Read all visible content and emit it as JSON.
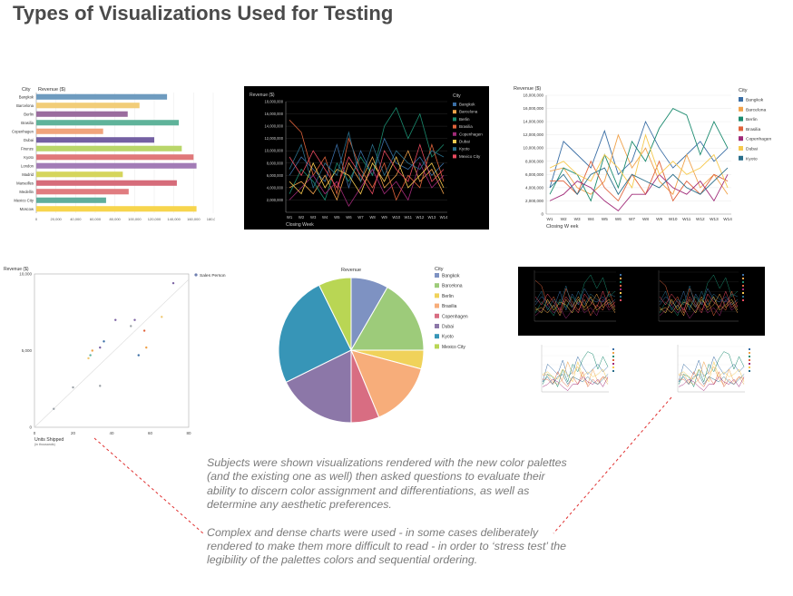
{
  "page": {
    "title": "Types of Visualizations Used for Testing"
  },
  "caption": {
    "p1": "Subjects were shown visualizations rendered with the new color palettes (and the existing one as well) then asked questions to evaluate their ability to discern color assignment and differentiations, as well as determine any aesthetic preferences.",
    "p2": "Complex and dense charts were used - in some cases deliberately rendered to make them more difficult to read - in order to ‘stress test’ the legibility of the palettes colors and sequential ordering."
  },
  "palette": [
    "#6f93c0",
    "#f0c873",
    "#9a6a9e",
    "#5db69c",
    "#f2a27a",
    "#7b62a3",
    "#b7d35b",
    "#e07a7a",
    "#a079b5",
    "#e05a72",
    "#d25c6c",
    "#f5d44e"
  ],
  "line_palette": [
    "#3a6ea5",
    "#f0a24a",
    "#1a8a6e",
    "#e0633b",
    "#a02a78",
    "#f6c94e",
    "#2a6e8a",
    "#e84a5f"
  ],
  "chart_data": [
    {
      "type": "bar",
      "id": "bar-chart",
      "xlabel": "Revenue ($)",
      "ylabel": "City",
      "categories": [
        "Bangkok",
        "Barcelona",
        "Berlin",
        "Brasilia",
        "Copenhagen",
        "Dubai",
        "Firenze",
        "Kyoto",
        "London",
        "Madrid",
        "Marseilles",
        "Medellin",
        "Mexico City",
        "Moscow"
      ],
      "values": [
        133000,
        105000,
        93000,
        145000,
        68000,
        120000,
        148000,
        160000,
        163000,
        88000,
        143000,
        94000,
        71000,
        163000
      ],
      "colors": [
        "#6e9bbf",
        "#f2cd78",
        "#9a6c9e",
        "#5fb39a",
        "#f0a47c",
        "#7460a3",
        "#b9d66a",
        "#e0787a",
        "#a27bb6",
        "#d5d55c",
        "#d66c7a",
        "#e07c80",
        "#5fae9c",
        "#f7d54d"
      ],
      "xticks": [
        "0",
        "20,000",
        "40,000",
        "60,000",
        "80,000",
        "100,000",
        "120,000",
        "140,000",
        "160,000",
        "180,000"
      ],
      "xlim": [
        0,
        180000
      ]
    },
    {
      "type": "line",
      "id": "line-dark",
      "ylabel": "Revenue ($)",
      "xlabel": "Closing Week",
      "legend_title": "City",
      "categories": [
        "W1",
        "W2",
        "W3",
        "W4",
        "W5",
        "W6",
        "W7",
        "W8",
        "W9",
        "W10",
        "W11",
        "W12",
        "W13",
        "W14"
      ],
      "yticks": [
        "2,000,000",
        "4,000,000",
        "6,000,000",
        "8,000,000",
        "10,000,000",
        "12,000,000",
        "14,000,000",
        "16,000,000",
        "18,000,000"
      ],
      "ylim": [
        0,
        18000000
      ],
      "series": [
        {
          "name": "Bangkok",
          "values": [
            6,
            9,
            7,
            5,
            11,
            4,
            10,
            6,
            12,
            8,
            7,
            9,
            6,
            8
          ]
        },
        {
          "name": "Barcelona",
          "values": [
            4,
            5,
            3,
            6,
            2,
            8,
            5,
            9,
            4,
            6,
            10,
            5,
            7,
            3
          ]
        },
        {
          "name": "Berlin",
          "values": [
            3,
            7,
            5,
            2,
            8,
            5,
            9,
            6,
            14,
            17,
            12,
            16,
            9,
            11
          ]
        },
        {
          "name": "Brasilia",
          "values": [
            15,
            13,
            6,
            9,
            3,
            12,
            7,
            4,
            8,
            2,
            6,
            4,
            11,
            5
          ]
        },
        {
          "name": "Copenhagen",
          "values": [
            2,
            4,
            6,
            3,
            5,
            1,
            4,
            7,
            3,
            5,
            2,
            8,
            4,
            6
          ]
        },
        {
          "name": "Dubai",
          "values": [
            5,
            3,
            8,
            4,
            7,
            6,
            3,
            8,
            5,
            9,
            4,
            6,
            8,
            4
          ]
        },
        {
          "name": "Kyoto",
          "values": [
            7,
            11,
            4,
            8,
            6,
            13,
            5,
            11,
            6,
            10,
            8,
            7,
            10,
            9
          ]
        },
        {
          "name": "Mexico City",
          "values": [
            9,
            6,
            10,
            7,
            4,
            9,
            6,
            3,
            10,
            7,
            5,
            11,
            5,
            7
          ]
        }
      ]
    },
    {
      "type": "line",
      "id": "line-light",
      "ylabel": "Revenue ($)",
      "xlabel": "Closing W  eek",
      "legend_title": "City",
      "categories": [
        "W1",
        "W2",
        "W3",
        "W4",
        "W5",
        "W6",
        "W7",
        "W8",
        "W9",
        "W10",
        "W11",
        "W12",
        "W13",
        "W14"
      ],
      "yticks": [
        "0",
        "2,000,000",
        "4,000,000",
        "6,000,000",
        "8,000,000",
        "10,000,000",
        "12,000,000",
        "14,000,000",
        "16,000,000",
        "18,000,000"
      ],
      "ylim": [
        0,
        18000000
      ],
      "series": [
        {
          "name": "Bangkok",
          "values": [
            4,
            11,
            9,
            7,
            12.6,
            6,
            8,
            14,
            10,
            7,
            9,
            11,
            8,
            10
          ]
        },
        {
          "name": "Barcelona",
          "values": [
            6.5,
            7,
            4,
            3,
            5,
            12,
            7,
            10,
            5,
            3,
            9,
            4,
            6,
            3
          ]
        },
        {
          "name": "Berlin",
          "values": [
            3,
            7,
            6,
            2,
            9,
            4,
            11,
            8,
            13,
            16,
            15,
            9,
            14,
            10
          ]
        },
        {
          "name": "Brasilia",
          "values": [
            5,
            5,
            3,
            8,
            4,
            2,
            6,
            3,
            8,
            2,
            5,
            3,
            6,
            5
          ]
        },
        {
          "name": "Copenhagen",
          "values": [
            2,
            3,
            5,
            4,
            2,
            0.5,
            3,
            3,
            6,
            4,
            3,
            5,
            2,
            6
          ]
        },
        {
          "name": "Dubai",
          "values": [
            7,
            8,
            6,
            5,
            9,
            7,
            4,
            12,
            6,
            8,
            6,
            7,
            9,
            4
          ]
        },
        {
          "name": "Kyoto",
          "values": [
            4,
            6,
            3,
            6,
            7,
            3,
            6,
            5,
            4,
            6,
            4,
            3,
            5,
            7
          ]
        }
      ]
    },
    {
      "type": "scatter",
      "id": "scatter-chart",
      "ylabel": "Revenue ($)",
      "xlabel": "Units Shipped",
      "xlabel_sub": "(in thousands)",
      "legend": "Sales Person",
      "xticks": [
        "0",
        "20",
        "40",
        "60",
        "80"
      ],
      "yticks": [
        "0",
        "5,000",
        "10,000"
      ],
      "xlim": [
        0,
        80
      ],
      "ylim": [
        0,
        10000
      ],
      "points": [
        {
          "x": 10,
          "y": 1200,
          "c": "#9aa0a6"
        },
        {
          "x": 20,
          "y": 2600,
          "c": "#9aa0a6"
        },
        {
          "x": 34,
          "y": 2700,
          "c": "#9aa0a6"
        },
        {
          "x": 28,
          "y": 4500,
          "c": "#f0c873"
        },
        {
          "x": 29,
          "y": 4700,
          "c": "#5fb39a"
        },
        {
          "x": 30,
          "y": 5000,
          "c": "#f0a24a"
        },
        {
          "x": 34,
          "y": 5200,
          "c": "#7b62a3"
        },
        {
          "x": 36,
          "y": 5600,
          "c": "#3a6ea5"
        },
        {
          "x": 42,
          "y": 7000,
          "c": "#7b62a3"
        },
        {
          "x": 52,
          "y": 7000,
          "c": "#7b62a3"
        },
        {
          "x": 50,
          "y": 6600,
          "c": "#9aa0a6"
        },
        {
          "x": 57,
          "y": 6300,
          "c": "#e0633b"
        },
        {
          "x": 58,
          "y": 5200,
          "c": "#f0a24a"
        },
        {
          "x": 54,
          "y": 4700,
          "c": "#3a6ea5"
        },
        {
          "x": 66,
          "y": 7200,
          "c": "#f0c873"
        },
        {
          "x": 72,
          "y": 9400,
          "c": "#7b62a3"
        }
      ]
    },
    {
      "type": "pie",
      "id": "pie-chart",
      "title": "Revenue",
      "legend_title": "City",
      "labels": [
        "Bangkok",
        "Barcelona",
        "Berlin",
        "Brasilia",
        "Copenhagen",
        "Dubai",
        "Kyoto",
        "Mexico City"
      ],
      "values": [
        8,
        16,
        4,
        14,
        6,
        17,
        24,
        7
      ],
      "colors": [
        "#7e92c2",
        "#9dcb7a",
        "#f0d25a",
        "#f7ad7a",
        "#d86d82",
        "#8c77a8",
        "#3795b7",
        "#b9d654"
      ]
    }
  ]
}
